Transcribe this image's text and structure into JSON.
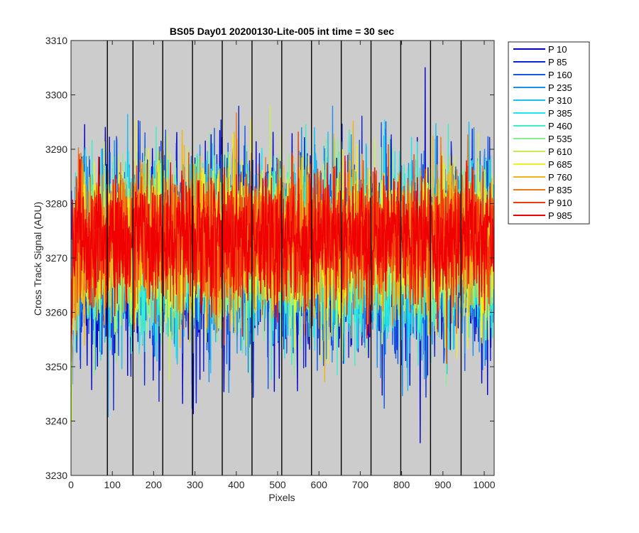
{
  "chart_data": {
    "type": "line",
    "title": "BS05 Day01 20200130-Lite-005 int time = 30 sec",
    "xlabel": "Pixels",
    "ylabel": "Cross Track Signal (ADU)",
    "xlim": [
      0,
      1024
    ],
    "ylim": [
      3230,
      3310
    ],
    "xticks": [
      0,
      100,
      200,
      300,
      400,
      500,
      600,
      700,
      800,
      900,
      1000
    ],
    "yticks": [
      3230,
      3240,
      3250,
      3260,
      3270,
      3280,
      3290,
      3300,
      3310
    ],
    "xtick_labels": [
      "0",
      "100",
      "200",
      "300",
      "400",
      "500",
      "600",
      "700",
      "800",
      "900",
      "1000"
    ],
    "ytick_labels": [
      "3230",
      "3240",
      "3250",
      "3260",
      "3270",
      "3280",
      "3290",
      "3300",
      "3310"
    ],
    "axes_background": "#cccccc",
    "vertical_divider_lines_x": [
      88,
      150,
      222,
      294,
      366,
      438,
      510,
      582,
      654,
      726,
      798,
      870,
      944
    ],
    "legend_location": "outside-top-right",
    "noise": {
      "mean": 3272,
      "typical_range": [
        3255,
        3290
      ],
      "points_per_series": 1024
    },
    "series": [
      {
        "name": "P 10",
        "color": "#0000c8"
      },
      {
        "name": "P 85",
        "color": "#0a24d8"
      },
      {
        "name": "P 160",
        "color": "#1456e6"
      },
      {
        "name": "P 235",
        "color": "#1a8ef0"
      },
      {
        "name": "P 310",
        "color": "#14c0f4"
      },
      {
        "name": "P 385",
        "color": "#1ee6f0"
      },
      {
        "name": "P 460",
        "color": "#3af0c8"
      },
      {
        "name": "P 535",
        "color": "#88f090"
      },
      {
        "name": "P 610",
        "color": "#c8f04c"
      },
      {
        "name": "P 685",
        "color": "#f0f01e"
      },
      {
        "name": "P 760",
        "color": "#f0b414"
      },
      {
        "name": "P 835",
        "color": "#f07814"
      },
      {
        "name": "P 910",
        "color": "#f03c0a"
      },
      {
        "name": "P 985",
        "color": "#f00000"
      }
    ]
  }
}
